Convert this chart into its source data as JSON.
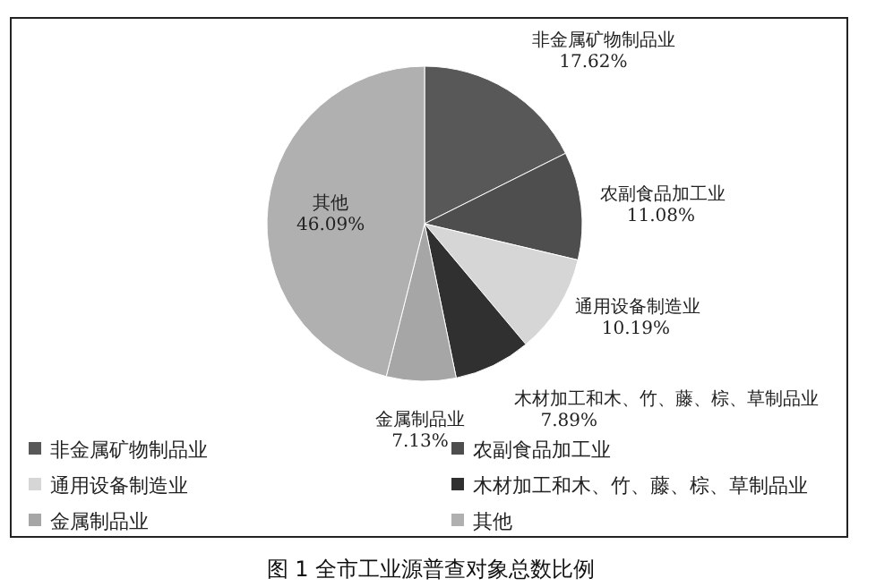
{
  "chart_data": {
    "type": "pie",
    "categories": [
      "非金属矿物制品业",
      "农副食品加工业",
      "通用设备制造业",
      "木材加工和木、竹、藤、棕、草制品业",
      "金属制品业",
      "其他"
    ],
    "values": [
      17.62,
      11.08,
      10.19,
      7.89,
      7.13,
      46.09
    ],
    "colors": [
      "#585858",
      "#4e4e4e",
      "#d6d6d6",
      "#303030",
      "#a6a6a6",
      "#b0b0b0"
    ],
    "value_labels": [
      "17.62%",
      "11.08%",
      "10.19%",
      "7.89%",
      "7.13%",
      "46.09%"
    ],
    "legend": "bottom",
    "annotations": [
      "图 1 全市工业源普查对象总数比例"
    ]
  }
}
